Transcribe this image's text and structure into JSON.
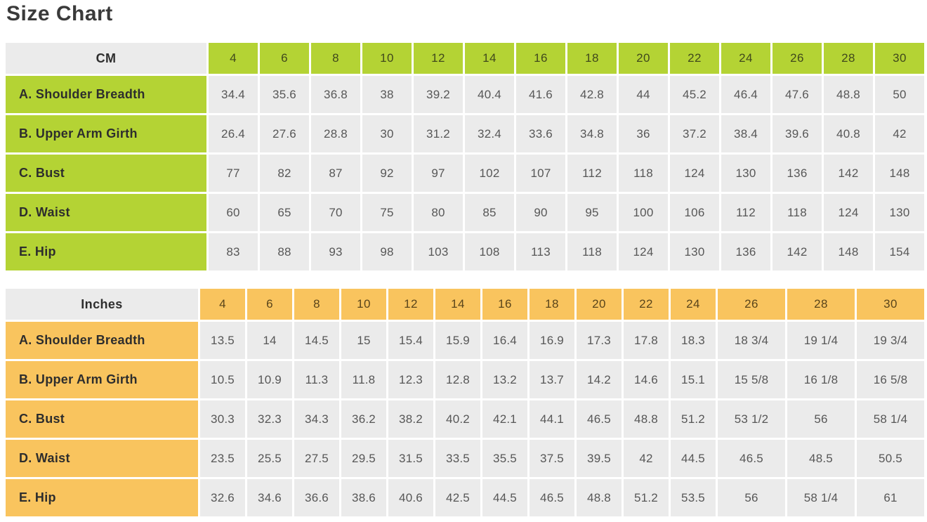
{
  "page_title": "Size Chart",
  "colors": {
    "cm_accent_green": "#b4d334",
    "inches_accent_orange": "#f9c45e",
    "cell_gray": "#ebebeb",
    "title_text": "#3a3a3a",
    "value_text": "#575757",
    "cm_header_text": "#40491c",
    "inches_header_text": "#5a451b"
  },
  "chart_data": [
    {
      "type": "table",
      "unit_label": "CM",
      "accent_color": "#b4d334",
      "header_text_color": "#40491c",
      "sizes": [
        "4",
        "6",
        "8",
        "10",
        "12",
        "14",
        "16",
        "18",
        "20",
        "22",
        "24",
        "26",
        "28",
        "30"
      ],
      "rows": [
        {
          "label": "A. Shoulder Breadth",
          "values": [
            "34.4",
            "35.6",
            "36.8",
            "38",
            "39.2",
            "40.4",
            "41.6",
            "42.8",
            "44",
            "45.2",
            "46.4",
            "47.6",
            "48.8",
            "50"
          ]
        },
        {
          "label": "B. Upper Arm Girth",
          "values": [
            "26.4",
            "27.6",
            "28.8",
            "30",
            "31.2",
            "32.4",
            "33.6",
            "34.8",
            "36",
            "37.2",
            "38.4",
            "39.6",
            "40.8",
            "42"
          ]
        },
        {
          "label": "C. Bust",
          "values": [
            "77",
            "82",
            "87",
            "92",
            "97",
            "102",
            "107",
            "112",
            "118",
            "124",
            "130",
            "136",
            "142",
            "148"
          ]
        },
        {
          "label": "D. Waist",
          "values": [
            "60",
            "65",
            "70",
            "75",
            "80",
            "85",
            "90",
            "95",
            "100",
            "106",
            "112",
            "118",
            "124",
            "130"
          ]
        },
        {
          "label": "E. Hip",
          "values": [
            "83",
            "88",
            "93",
            "98",
            "103",
            "108",
            "113",
            "118",
            "124",
            "130",
            "136",
            "142",
            "148",
            "154"
          ]
        }
      ]
    },
    {
      "type": "table",
      "unit_label": "Inches",
      "accent_color": "#f9c45e",
      "header_text_color": "#5a451b",
      "sizes": [
        "4",
        "6",
        "8",
        "10",
        "12",
        "14",
        "16",
        "18",
        "20",
        "22",
        "24",
        "26",
        "28",
        "30"
      ],
      "rows": [
        {
          "label": "A. Shoulder Breadth",
          "values": [
            "13.5",
            "14",
            "14.5",
            "15",
            "15.4",
            "15.9",
            "16.4",
            "16.9",
            "17.3",
            "17.8",
            "18.3",
            "18 3/4",
            "19 1/4",
            "19 3/4"
          ]
        },
        {
          "label": "B. Upper Arm Girth",
          "values": [
            "10.5",
            "10.9",
            "11.3",
            "11.8",
            "12.3",
            "12.8",
            "13.2",
            "13.7",
            "14.2",
            "14.6",
            "15.1",
            "15 5/8",
            "16 1/8",
            "16 5/8"
          ]
        },
        {
          "label": "C. Bust",
          "values": [
            "30.3",
            "32.3",
            "34.3",
            "36.2",
            "38.2",
            "40.2",
            "42.1",
            "44.1",
            "46.5",
            "48.8",
            "51.2",
            "53 1/2",
            "56",
            "58 1/4"
          ]
        },
        {
          "label": "D. Waist",
          "values": [
            "23.5",
            "25.5",
            "27.5",
            "29.5",
            "31.5",
            "33.5",
            "35.5",
            "37.5",
            "39.5",
            "42",
            "44.5",
            "46.5",
            "48.5",
            "50.5"
          ]
        },
        {
          "label": "E. Hip",
          "values": [
            "32.6",
            "34.6",
            "36.6",
            "38.6",
            "40.6",
            "42.5",
            "44.5",
            "46.5",
            "48.8",
            "51.2",
            "53.5",
            "56",
            "58 1/4",
            "61"
          ]
        }
      ]
    }
  ]
}
